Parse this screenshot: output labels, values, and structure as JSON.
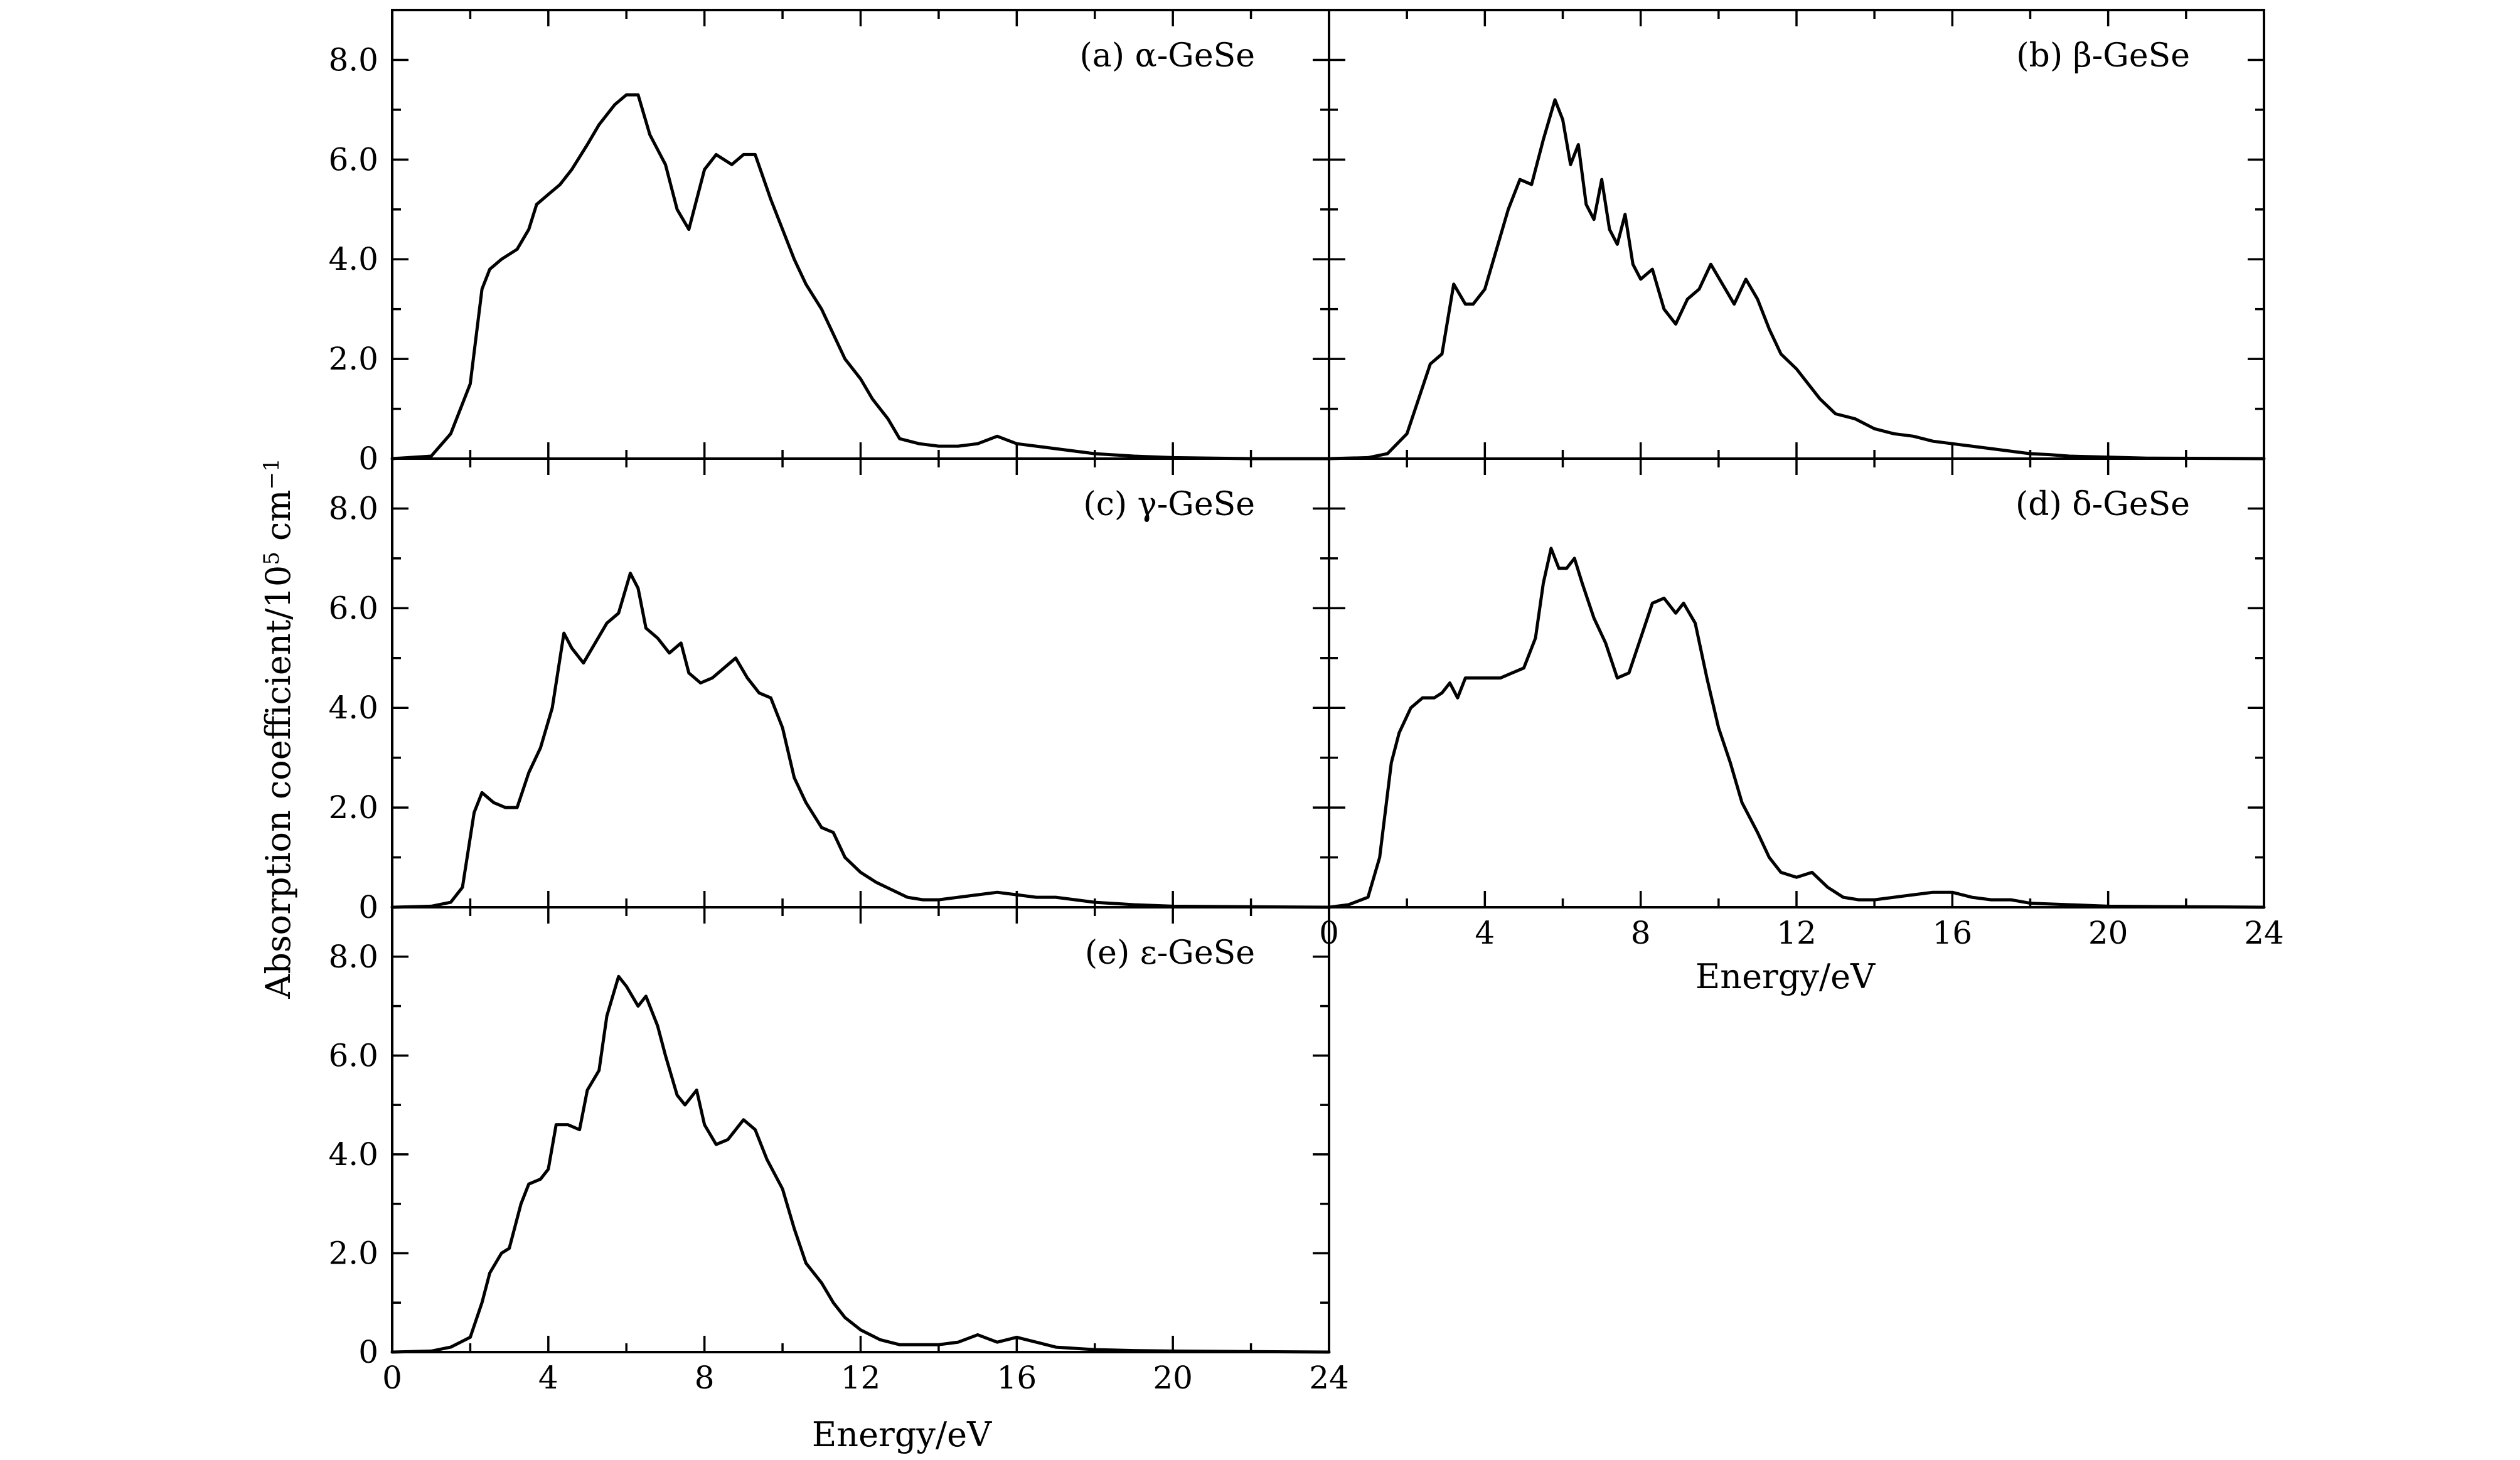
{
  "chart_data": {
    "type": "line",
    "ylabel_parts": {
      "base": "Absorption coefficient/10",
      "exp5": "5",
      "mid": " cm",
      "expm1": "−1"
    },
    "xlabel": "Energy/eV",
    "x_range": [
      0,
      24
    ],
    "y_range": [
      0,
      9
    ],
    "x_ticks": [
      "0",
      "4",
      "8",
      "12",
      "16",
      "20",
      "24"
    ],
    "y_ticks": [
      "0",
      "2.0",
      "4.0",
      "6.0",
      "8.0"
    ],
    "panels": [
      {
        "label": "(a) α-GeSe",
        "x": [
          0,
          1,
          1.5,
          2,
          2.3,
          2.5,
          2.8,
          3.2,
          3.5,
          3.7,
          4,
          4.3,
          4.6,
          5,
          5.3,
          5.7,
          6,
          6.3,
          6.6,
          7,
          7.3,
          7.6,
          8,
          8.3,
          8.7,
          9,
          9.3,
          9.7,
          10,
          10.3,
          10.6,
          11,
          11.3,
          11.6,
          12,
          12.3,
          12.7,
          13,
          13.5,
          14,
          14.5,
          15,
          15.5,
          16,
          16.5,
          17,
          17.5,
          18,
          19,
          20,
          22,
          24
        ],
        "values": [
          0,
          0.05,
          0.5,
          1.5,
          3.4,
          3.8,
          4.0,
          4.2,
          4.6,
          5.1,
          5.3,
          5.5,
          5.8,
          6.3,
          6.7,
          7.1,
          7.3,
          7.3,
          6.5,
          5.9,
          5.0,
          4.6,
          5.8,
          6.1,
          5.9,
          6.1,
          6.1,
          5.2,
          4.6,
          4.0,
          3.5,
          3.0,
          2.5,
          2.0,
          1.6,
          1.2,
          0.8,
          0.4,
          0.3,
          0.25,
          0.25,
          0.3,
          0.45,
          0.3,
          0.25,
          0.2,
          0.15,
          0.1,
          0.05,
          0.02,
          0,
          0
        ]
      },
      {
        "label": "(b) β-GeSe",
        "x": [
          0,
          1,
          1.5,
          2,
          2.3,
          2.6,
          2.9,
          3.2,
          3.5,
          3.7,
          4,
          4.3,
          4.6,
          4.9,
          5.2,
          5.5,
          5.8,
          6,
          6.2,
          6.4,
          6.6,
          6.8,
          7,
          7.2,
          7.4,
          7.6,
          7.8,
          8,
          8.3,
          8.6,
          8.9,
          9.2,
          9.5,
          9.8,
          10.1,
          10.4,
          10.7,
          11,
          11.3,
          11.6,
          12,
          12.3,
          12.6,
          13,
          13.5,
          14,
          14.5,
          15,
          15.5,
          16,
          16.5,
          17,
          17.5,
          18,
          18.5,
          19,
          20,
          21,
          24
        ],
        "values": [
          0,
          0.02,
          0.1,
          0.5,
          1.2,
          1.9,
          2.1,
          3.5,
          3.1,
          3.1,
          3.4,
          4.2,
          5.0,
          5.6,
          5.5,
          6.4,
          7.2,
          6.8,
          5.9,
          6.3,
          5.1,
          4.8,
          5.6,
          4.6,
          4.3,
          4.9,
          3.9,
          3.6,
          3.8,
          3.0,
          2.7,
          3.2,
          3.4,
          3.9,
          3.5,
          3.1,
          3.6,
          3.2,
          2.6,
          2.1,
          1.8,
          1.5,
          1.2,
          0.9,
          0.8,
          0.6,
          0.5,
          0.45,
          0.35,
          0.3,
          0.25,
          0.2,
          0.15,
          0.1,
          0.08,
          0.05,
          0.03,
          0.01,
          0
        ]
      },
      {
        "label": "(c) γ-GeSe",
        "x": [
          0,
          1,
          1.5,
          1.8,
          2.1,
          2.3,
          2.6,
          2.9,
          3.2,
          3.5,
          3.8,
          4.1,
          4.4,
          4.6,
          4.9,
          5.2,
          5.5,
          5.8,
          6.1,
          6.3,
          6.5,
          6.8,
          7.1,
          7.4,
          7.6,
          7.9,
          8.2,
          8.5,
          8.8,
          9.1,
          9.4,
          9.7,
          10,
          10.3,
          10.6,
          11,
          11.3,
          11.6,
          12,
          12.4,
          12.8,
          13.2,
          13.6,
          14,
          14.5,
          15,
          15.5,
          16,
          16.5,
          17,
          17.5,
          18,
          19,
          20,
          24
        ],
        "values": [
          0,
          0.02,
          0.1,
          0.4,
          1.9,
          2.3,
          2.1,
          2.0,
          2.0,
          2.7,
          3.2,
          4.0,
          5.5,
          5.2,
          4.9,
          5.3,
          5.7,
          5.9,
          6.7,
          6.4,
          5.6,
          5.4,
          5.1,
          5.3,
          4.7,
          4.5,
          4.6,
          4.8,
          5.0,
          4.6,
          4.3,
          4.2,
          3.6,
          2.6,
          2.1,
          1.6,
          1.5,
          1.0,
          0.7,
          0.5,
          0.35,
          0.2,
          0.15,
          0.15,
          0.2,
          0.25,
          0.3,
          0.25,
          0.2,
          0.2,
          0.15,
          0.1,
          0.05,
          0.02,
          0
        ]
      },
      {
        "label": "(d) δ-GeSe",
        "x": [
          0,
          0.5,
          1,
          1.3,
          1.6,
          1.8,
          2.1,
          2.4,
          2.7,
          2.9,
          3.1,
          3.3,
          3.5,
          3.8,
          4.1,
          4.4,
          4.7,
          5,
          5.3,
          5.5,
          5.7,
          5.9,
          6.1,
          6.3,
          6.5,
          6.8,
          7.1,
          7.4,
          7.7,
          8,
          8.3,
          8.6,
          8.9,
          9.1,
          9.4,
          9.7,
          10,
          10.3,
          10.6,
          11,
          11.3,
          11.6,
          12,
          12.4,
          12.8,
          13.2,
          13.6,
          14,
          14.5,
          15,
          15.5,
          16,
          16.5,
          17,
          17.5,
          18,
          19,
          20,
          24
        ],
        "values": [
          0,
          0.05,
          0.2,
          1.0,
          2.9,
          3.5,
          4.0,
          4.2,
          4.2,
          4.3,
          4.5,
          4.2,
          4.6,
          4.6,
          4.6,
          4.6,
          4.7,
          4.8,
          5.4,
          6.5,
          7.2,
          6.8,
          6.8,
          7.0,
          6.5,
          5.8,
          5.3,
          4.6,
          4.7,
          5.4,
          6.1,
          6.2,
          5.9,
          6.1,
          5.7,
          4.6,
          3.6,
          2.9,
          2.1,
          1.5,
          1.0,
          0.7,
          0.6,
          0.7,
          0.4,
          0.2,
          0.15,
          0.15,
          0.2,
          0.25,
          0.3,
          0.3,
          0.2,
          0.15,
          0.15,
          0.08,
          0.05,
          0.02,
          0
        ]
      },
      {
        "label": "(e) ε-GeSe",
        "x": [
          0,
          1,
          1.5,
          2,
          2.3,
          2.5,
          2.8,
          3,
          3.3,
          3.5,
          3.8,
          4,
          4.2,
          4.5,
          4.8,
          5,
          5.3,
          5.5,
          5.8,
          6,
          6.3,
          6.5,
          6.8,
          7,
          7.3,
          7.5,
          7.8,
          8,
          8.3,
          8.6,
          9,
          9.3,
          9.6,
          10,
          10.3,
          10.6,
          11,
          11.3,
          11.6,
          12,
          12.5,
          13,
          13.5,
          14,
          14.5,
          15,
          15.5,
          16,
          16.5,
          17,
          18,
          19,
          20,
          22,
          24
        ],
        "values": [
          0,
          0.02,
          0.1,
          0.3,
          1.0,
          1.6,
          2.0,
          2.1,
          3.0,
          3.4,
          3.5,
          3.7,
          4.6,
          4.6,
          4.5,
          5.3,
          5.7,
          6.8,
          7.6,
          7.4,
          7.0,
          7.2,
          6.6,
          6.0,
          5.2,
          5.0,
          5.3,
          4.6,
          4.2,
          4.3,
          4.7,
          4.5,
          3.9,
          3.3,
          2.5,
          1.8,
          1.4,
          1.0,
          0.7,
          0.45,
          0.25,
          0.15,
          0.15,
          0.15,
          0.2,
          0.35,
          0.2,
          0.3,
          0.2,
          0.1,
          0.05,
          0.03,
          0.02,
          0.01,
          0
        ]
      }
    ]
  }
}
